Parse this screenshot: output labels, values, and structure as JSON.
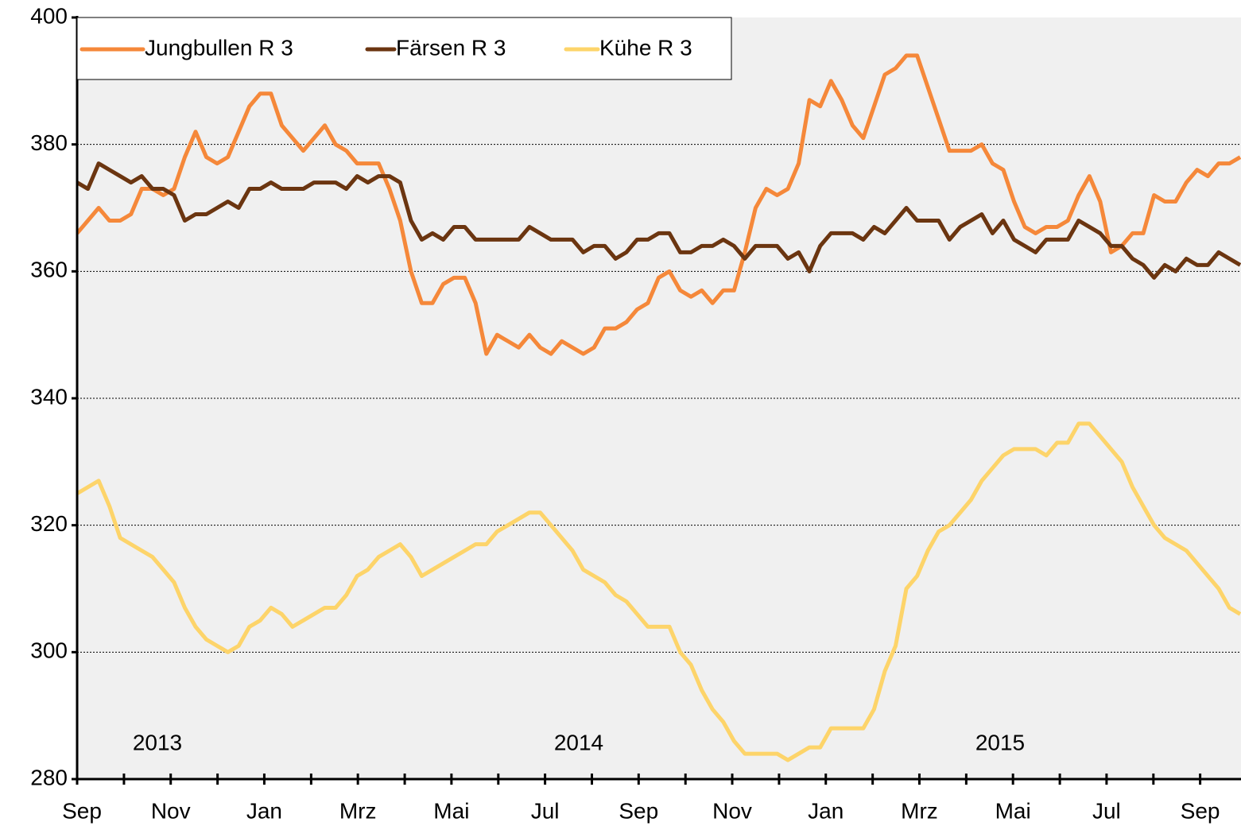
{
  "chart_data": {
    "type": "line",
    "series": [
      {
        "name": "Jungbullen R 3",
        "color": "#F5883A",
        "values": [
          366,
          368,
          370,
          368,
          368,
          369,
          373,
          373,
          372,
          373,
          378,
          382,
          378,
          377,
          378,
          382,
          386,
          388,
          388,
          383,
          381,
          379,
          381,
          383,
          380,
          379,
          377,
          377,
          377,
          373,
          368,
          360,
          355,
          355,
          358,
          359,
          359,
          355,
          347,
          350,
          349,
          348,
          350,
          348,
          347,
          349,
          348,
          347,
          348,
          351,
          351,
          352,
          354,
          355,
          359,
          360,
          357,
          356,
          357,
          355,
          357,
          357,
          363,
          370,
          373,
          372,
          373,
          377,
          387,
          386,
          390,
          387,
          383,
          381,
          386,
          391,
          392,
          394,
          394,
          389,
          384,
          379,
          379,
          379,
          380,
          377,
          376,
          371,
          367,
          366,
          367,
          367,
          368,
          372,
          375,
          371,
          363,
          364,
          366,
          366,
          372,
          371,
          371,
          374,
          376,
          375,
          377,
          377,
          378
        ]
      },
      {
        "name": "Färsen R 3",
        "color": "#6B3510",
        "values": [
          374,
          373,
          377,
          376,
          375,
          374,
          375,
          373,
          373,
          372,
          368,
          369,
          369,
          370,
          371,
          370,
          373,
          373,
          374,
          373,
          373,
          373,
          374,
          374,
          374,
          373,
          375,
          374,
          375,
          375,
          374,
          368,
          365,
          366,
          365,
          367,
          367,
          365,
          365,
          365,
          365,
          365,
          367,
          366,
          365,
          365,
          365,
          363,
          364,
          364,
          362,
          363,
          365,
          365,
          366,
          366,
          363,
          363,
          364,
          364,
          365,
          364,
          362,
          364,
          364,
          364,
          362,
          363,
          360,
          364,
          366,
          366,
          366,
          365,
          367,
          366,
          368,
          370,
          368,
          368,
          368,
          365,
          367,
          368,
          369,
          366,
          368,
          365,
          364,
          363,
          365,
          365,
          365,
          368,
          367,
          366,
          364,
          364,
          362,
          361,
          359,
          361,
          360,
          362,
          361,
          361,
          363,
          362,
          361
        ]
      },
      {
        "name": "Kühe R 3",
        "color": "#FDD46A",
        "values": [
          325,
          326,
          327,
          323,
          318,
          317,
          316,
          315,
          313,
          311,
          307,
          304,
          302,
          301,
          300,
          301,
          304,
          305,
          307,
          306,
          304,
          305,
          306,
          307,
          307,
          309,
          312,
          313,
          315,
          316,
          317,
          315,
          312,
          313,
          314,
          315,
          316,
          317,
          317,
          319,
          320,
          321,
          322,
          322,
          320,
          318,
          316,
          313,
          312,
          311,
          309,
          308,
          306,
          304,
          304,
          304,
          300,
          298,
          294,
          291,
          289,
          286,
          284,
          284,
          284,
          284,
          283,
          284,
          285,
          285,
          288,
          288,
          288,
          288,
          291,
          297,
          301,
          310,
          312,
          316,
          319,
          320,
          322,
          324,
          327,
          329,
          331,
          332,
          332,
          332,
          331,
          333,
          333,
          336,
          336,
          334,
          332,
          330,
          326,
          323,
          320,
          318,
          317,
          316,
          314,
          312,
          310,
          307,
          306
        ]
      }
    ],
    "xlim": [
      0,
      108
    ],
    "xticks": [
      {
        "value": 0,
        "label": "Sep"
      },
      {
        "value": 8.69,
        "label": "Nov"
      },
      {
        "value": 17.38,
        "label": "Jan"
      },
      {
        "value": 26.07,
        "label": "Mrz"
      },
      {
        "value": 34.76,
        "label": "Mai"
      },
      {
        "value": 43.45,
        "label": "Jul"
      },
      {
        "value": 52.14,
        "label": "Sep"
      },
      {
        "value": 60.83,
        "label": "Nov"
      },
      {
        "value": 69.52,
        "label": "Jan"
      },
      {
        "value": 78.21,
        "label": "Mrz"
      },
      {
        "value": 86.9,
        "label": "Mai"
      },
      {
        "value": 95.59,
        "label": "Jul"
      },
      {
        "value": 104.28,
        "label": "Sep"
      }
    ],
    "xminorticks": [
      4.35,
      13.04,
      21.73,
      30.42,
      39.11,
      47.8,
      56.49,
      65.18,
      73.87,
      82.56,
      91.25,
      99.94
    ],
    "ylim": [
      280,
      400
    ],
    "yticks": [
      280,
      300,
      320,
      340,
      360,
      380,
      400
    ],
    "grid": true,
    "legend": "top-left",
    "annotations": [
      "2013",
      "2014",
      "2015"
    ]
  }
}
